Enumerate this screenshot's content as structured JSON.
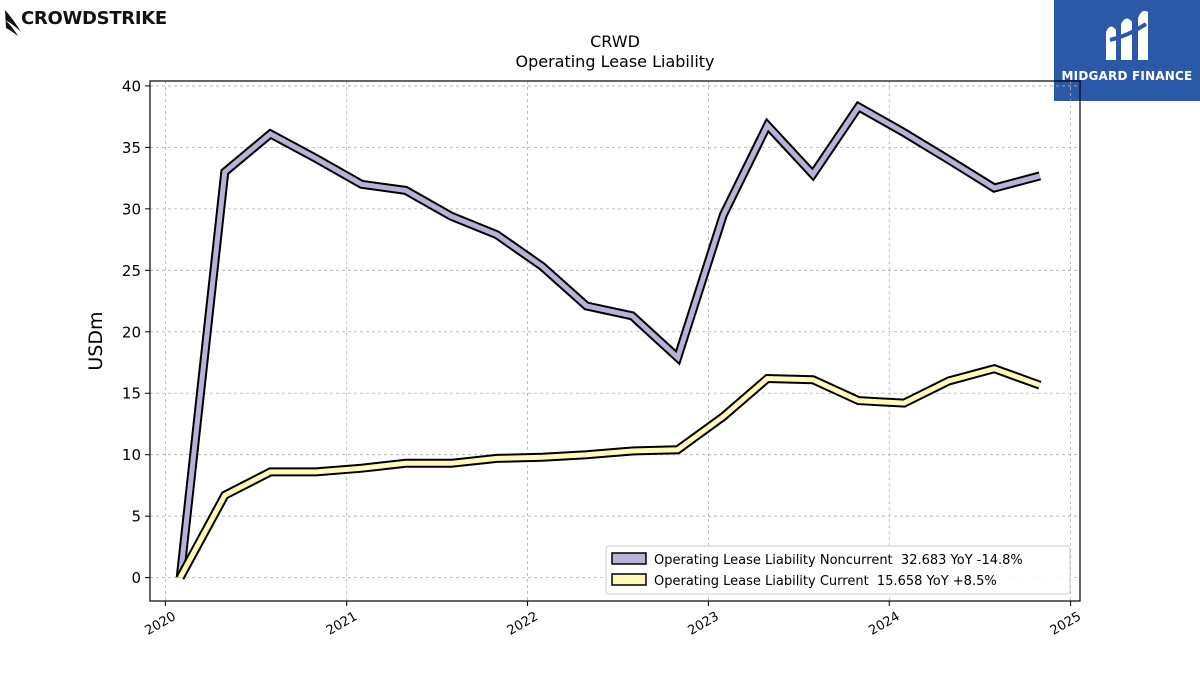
{
  "brand": {
    "left_logo_text": "CROWDSTRIKE",
    "right_logo_text": "MIDGARD FINANCE"
  },
  "colors": {
    "noncurrent": "#b7b3d8",
    "current": "#fffab8",
    "outline": "#000000",
    "grid": "#b0b0b0",
    "brand_blue": "#2b59a8"
  },
  "chart_data": {
    "type": "line",
    "title": "CRWD",
    "subtitle": "Operating Lease Liability",
    "xlabel": "",
    "ylabel": "USDm",
    "xlim": [
      "2019-12-01",
      "2025-01-20"
    ],
    "ylim": [
      -1.9,
      40.4
    ],
    "y_ticks": [
      0,
      5,
      10,
      15,
      20,
      25,
      30,
      35,
      40
    ],
    "x_ticks": [
      {
        "date": "2020-01-01",
        "label": "2020"
      },
      {
        "date": "2021-01-01",
        "label": "2021"
      },
      {
        "date": "2022-01-01",
        "label": "2022"
      },
      {
        "date": "2023-01-01",
        "label": "2023"
      },
      {
        "date": "2024-01-01",
        "label": "2024"
      },
      {
        "date": "2025-01-01",
        "label": "2025"
      }
    ],
    "grid": true,
    "legend_position": "lower-right",
    "series": [
      {
        "name": "Operating Lease Liability Noncurrent  32.683 YoY -14.8%",
        "color": "#b7b3d8",
        "x": [
          "2020-01-31",
          "2020-04-30",
          "2020-07-31",
          "2020-10-31",
          "2021-01-31",
          "2021-04-30",
          "2021-07-31",
          "2021-10-31",
          "2022-01-31",
          "2022-04-30",
          "2022-07-31",
          "2022-10-31",
          "2023-01-31",
          "2023-04-30",
          "2023-07-31",
          "2023-10-31",
          "2024-01-31",
          "2024-04-30",
          "2024-07-31",
          "2024-10-31"
        ],
        "values": [
          0,
          33.0,
          36.1,
          34.1,
          32.0,
          31.5,
          29.4,
          27.9,
          25.3,
          22.1,
          21.3,
          17.9,
          29.5,
          36.8,
          32.8,
          38.3,
          36.2,
          34.0,
          31.7,
          32.683
        ]
      },
      {
        "name": "Operating Lease Liability Current  15.658 YoY +8.5%",
        "color": "#fffab8",
        "x": [
          "2020-01-31",
          "2020-04-30",
          "2020-07-31",
          "2020-10-31",
          "2021-01-31",
          "2021-04-30",
          "2021-07-31",
          "2021-10-31",
          "2022-01-31",
          "2022-04-30",
          "2022-07-31",
          "2022-10-31",
          "2023-01-31",
          "2023-04-30",
          "2023-07-31",
          "2023-10-31",
          "2024-01-31",
          "2024-04-30",
          "2024-07-31",
          "2024-10-31"
        ],
        "values": [
          0,
          6.7,
          8.6,
          8.6,
          8.9,
          9.3,
          9.3,
          9.7,
          9.8,
          10.0,
          10.3,
          10.4,
          13.1,
          16.2,
          16.1,
          14.4,
          14.2,
          16.0,
          17.0,
          15.658
        ]
      }
    ]
  }
}
